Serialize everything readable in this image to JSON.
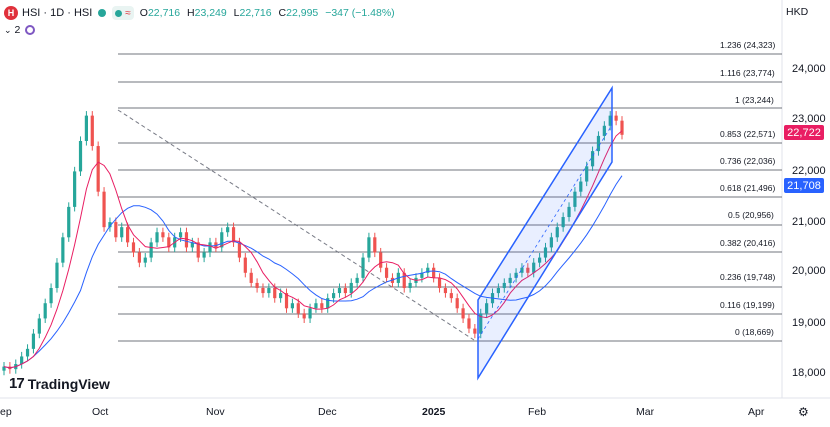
{
  "header": {
    "symbol_logo": "H",
    "symbol_title": "HSI · 1D · HSI",
    "ohlc": {
      "open_label": "O",
      "open": "22,716",
      "high_label": "H",
      "high": "23,249",
      "low_label": "L",
      "low": "22,716",
      "close_label": "C",
      "close": "22,995",
      "change": "−347 (−1.48%)"
    },
    "indicator_count": "2",
    "currency": "HKD"
  },
  "watermark": "TradingView",
  "colors": {
    "up": "#26a69a",
    "down": "#ef5350",
    "channel": "#2962ff",
    "ma_fast": "#e91e63",
    "ma_slow": "#2962ff",
    "fib": "#434651"
  },
  "chart_data": {
    "type": "candlestick",
    "y_axis": {
      "ticks": [
        "24,000",
        "23,000",
        "22,000",
        "21,000",
        "20,000",
        "19,000",
        "18,000"
      ]
    },
    "x_axis": {
      "ticks": [
        "ep",
        "Oct",
        "Nov",
        "Dec",
        "2025",
        "Feb",
        "Mar",
        "Apr"
      ]
    },
    "price_badges": [
      {
        "value": "22,722",
        "color": "#e91e63"
      },
      {
        "value": "21,708",
        "color": "#2962ff"
      }
    ],
    "fibonacci": [
      {
        "ratio": "1.236",
        "price": "(24,323)"
      },
      {
        "ratio": "1.116",
        "price": "(23,774)"
      },
      {
        "ratio": "1",
        "price": "(23,244)"
      },
      {
        "ratio": "0.853",
        "price": "(22,571)"
      },
      {
        "ratio": "0.736",
        "price": "(22,036)"
      },
      {
        "ratio": "0.618",
        "price": "(21,496)"
      },
      {
        "ratio": "0.5",
        "price": "(20,956)"
      },
      {
        "ratio": "0.382",
        "price": "(20,416)"
      },
      {
        "ratio": "0.236",
        "price": "(19,748)"
      },
      {
        "ratio": "0.116",
        "price": "(19,199)"
      },
      {
        "ratio": "0",
        "price": "(18,669)"
      }
    ]
  }
}
